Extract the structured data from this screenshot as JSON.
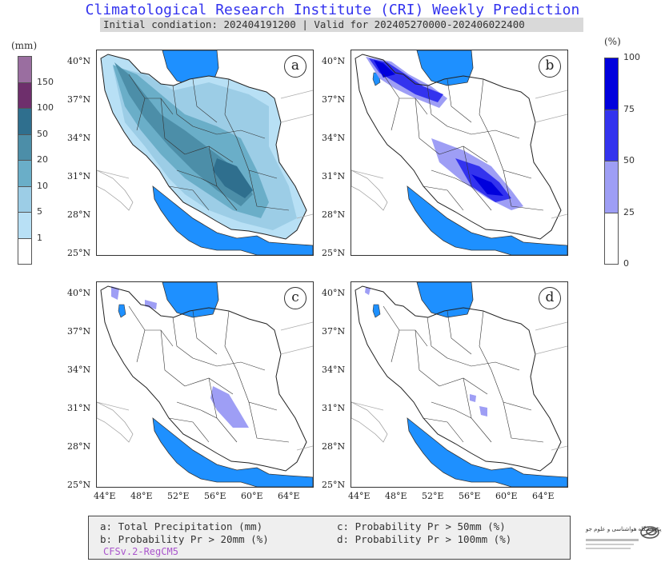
{
  "title": "Climatological Research Institute (CRI) Weekly Prediction",
  "subtitle": "Initial condiation: 202404191200 | Valid for 202405270000-202406022400",
  "colorbar_left": {
    "unit": "(mm)",
    "ticks": [
      "150",
      "100",
      "50",
      "20",
      "10",
      "5",
      "1"
    ],
    "colors": [
      "#9a6ea0",
      "#6e2f6c",
      "#2f6f8e",
      "#4c8ea8",
      "#6aaec8",
      "#9ccde6",
      "#b8e0f5",
      "#ffffff"
    ]
  },
  "colorbar_right": {
    "unit": "(%)",
    "ticks": [
      "100",
      "75",
      "50",
      "25",
      "0"
    ],
    "colors": [
      "#0000dd",
      "#3333ee",
      "#9e9ef5",
      "#ffffff"
    ]
  },
  "panels": [
    {
      "label": "a",
      "name": "total-precipitation"
    },
    {
      "label": "b",
      "name": "probability-20mm"
    },
    {
      "label": "c",
      "name": "probability-50mm"
    },
    {
      "label": "d",
      "name": "probability-100mm"
    }
  ],
  "lat_labels": [
    "40°N",
    "37°N",
    "34°N",
    "31°N",
    "28°N",
    "25°N"
  ],
  "lon_labels": [
    "44°E",
    "48°E",
    "52°E",
    "56°E",
    "60°E",
    "64°E"
  ],
  "legend": {
    "a": "a: Total Precipitation (mm)",
    "b": "b: Probability Pr > 20mm (%)",
    "c": "c: Probability Pr > 50mm (%)",
    "d": "d: Probability Pr > 100mm (%)",
    "model": "CFSv.2-RegCM5"
  },
  "logo_text": "پژوهشگاه هواشناسی و علوم جو",
  "colors": {
    "sea": "#1e90ff",
    "title": "#3333ee",
    "model": "#aa55cc"
  }
}
